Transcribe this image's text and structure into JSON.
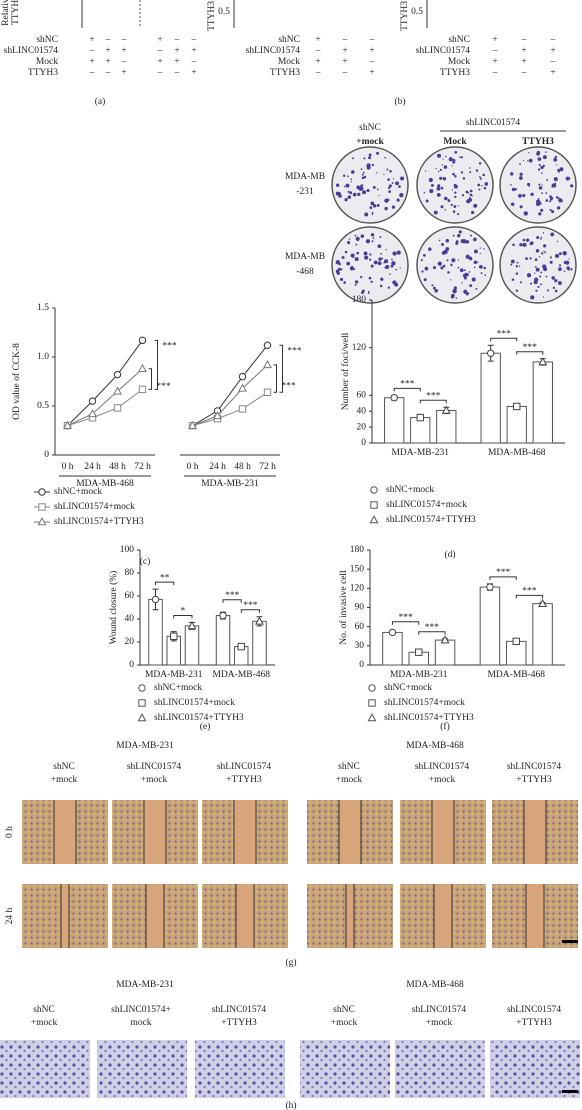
{
  "top": {
    "panel_a": {
      "ylabel": [
        "Relative",
        "TTYH3"
      ],
      "rows": [
        {
          "label": "shNC",
          "signs": [
            "+",
            "–",
            "–",
            "+",
            "–",
            "–"
          ]
        },
        {
          "label": "shLINC01574",
          "signs": [
            "–",
            "+",
            "+",
            "–",
            "+",
            "+"
          ]
        },
        {
          "label": "Mock",
          "signs": [
            "+",
            "+",
            "–",
            "+",
            "+",
            "–"
          ]
        },
        {
          "label": "TTYH3",
          "signs": [
            "–",
            "–",
            "+",
            "–",
            "–",
            "+"
          ]
        }
      ],
      "panel": "(a)"
    },
    "panel_b": {
      "ylabel": "TTYH3",
      "tick": "0.5",
      "rows": [
        {
          "label": "shNC",
          "signs": [
            "+",
            "–",
            "–",
            "+",
            "–",
            "–"
          ]
        },
        {
          "label": "shLINC01574",
          "signs": [
            "–",
            "+",
            "+",
            "–",
            "+",
            "+"
          ]
        },
        {
          "label": "Mock",
          "signs": [
            "+",
            "+",
            "–",
            "+",
            "+",
            "–"
          ]
        },
        {
          "label": "TTYH3",
          "signs": [
            "–",
            "–",
            "+",
            "–",
            "–",
            "+"
          ]
        }
      ],
      "panel": "(b)"
    }
  },
  "colony": {
    "columns": [
      "shNC",
      "+mock"
    ],
    "group": "shLINC01574",
    "subcolumns": [
      "Mock",
      "TTYH3"
    ],
    "rows": [
      [
        "MDA-MB",
        "-231"
      ],
      [
        "MDA-MB",
        "-468"
      ]
    ]
  },
  "chart_data": [
    {
      "type": "line",
      "panel": "(c)",
      "ylabel": "OD value of CCK-8",
      "categories": [
        "0 h",
        "24 h",
        "48 h",
        "72 h",
        null,
        "0 h",
        "24 h",
        "48 h",
        "72 h"
      ],
      "groups": [
        "MDA-MB-468",
        "MDA-MB-231"
      ],
      "series": [
        {
          "name": "shNC+mock",
          "color": "#333333",
          "marker": "circle",
          "values": [
            0.3,
            0.55,
            0.82,
            1.17,
            null,
            0.3,
            0.45,
            0.8,
            1.12
          ]
        },
        {
          "name": "shLINC01574+mock",
          "color": "#888888",
          "marker": "square",
          "values": [
            0.3,
            0.38,
            0.48,
            0.67,
            null,
            0.3,
            0.37,
            0.47,
            0.64
          ]
        },
        {
          "name": "shLINC01574+TTYH3",
          "color": "#777777",
          "marker": "triangle",
          "values": [
            0.3,
            0.42,
            0.65,
            0.88,
            null,
            0.3,
            0.4,
            0.68,
            0.92
          ]
        }
      ],
      "significance": [
        [
          "***",
          "***"
        ],
        [
          "***",
          "***"
        ]
      ],
      "ylim": [
        0,
        1.5
      ],
      "yticks": [
        0,
        0.5,
        {
          "value": 1,
          "label": "1.0"
        },
        1.5
      ]
    },
    {
      "type": "bar",
      "panel": "(d)",
      "ylabel": "Number of foci/well",
      "categories": [
        "MDA-MB-231",
        "MDA-MB-468"
      ],
      "series": [
        {
          "name": "shNC+mock",
          "color": "#555555",
          "marker": "circle",
          "values": [
            57,
            113
          ],
          "errors": [
            3,
            10
          ]
        },
        {
          "name": "shLINC01574+mock",
          "color": "#555555",
          "marker": "square",
          "values": [
            32,
            46
          ],
          "errors": [
            3,
            3
          ]
        },
        {
          "name": "shLINC01574+TTYH3",
          "color": "#555555",
          "marker": "triangle",
          "values": [
            41,
            102
          ],
          "errors": [
            4,
            4
          ]
        }
      ],
      "significance": [
        [
          "***",
          "***"
        ],
        [
          "***",
          "***"
        ]
      ],
      "ylim": [
        0,
        180
      ],
      "yticks": [
        0,
        20,
        40,
        60,
        120,
        180
      ]
    },
    {
      "type": "bar",
      "panel": "(e)",
      "ylabel": "Wound closure (%)",
      "categories": [
        "MDA-MB-231",
        "MDA-MB-468"
      ],
      "series": [
        {
          "name": "shNC+mock",
          "color": "#555555",
          "marker": "circle",
          "values": [
            57,
            43
          ],
          "errors": [
            9,
            3
          ]
        },
        {
          "name": "shLINC01574+mock",
          "color": "#555555",
          "marker": "square",
          "values": [
            25,
            16
          ],
          "errors": [
            4,
            2
          ]
        },
        {
          "name": "shLINC01574+TTYH3",
          "color": "#555555",
          "marker": "triangle",
          "values": [
            34,
            38
          ],
          "errors": [
            3,
            4
          ]
        }
      ],
      "significance": [
        [
          "**",
          "*"
        ],
        [
          "***",
          "***"
        ]
      ],
      "ylim": [
        0,
        100
      ],
      "yticks": [
        0,
        20,
        40,
        60,
        80,
        100
      ]
    },
    {
      "type": "bar",
      "panel": "(f)",
      "ylabel": "No. of invasive cell",
      "categories": [
        "MDA-MB-231",
        "MDA-MB-468"
      ],
      "series": [
        {
          "name": "shNC+mock",
          "color": "#555555",
          "marker": "circle",
          "values": [
            51,
            122
          ],
          "errors": [
            2,
            5
          ]
        },
        {
          "name": "shLINC01574+mock",
          "color": "#555555",
          "marker": "square",
          "values": [
            20,
            37
          ],
          "errors": [
            2,
            2
          ]
        },
        {
          "name": "shLINC01574+TTYH3",
          "color": "#555555",
          "marker": "triangle",
          "values": [
            39,
            96
          ],
          "errors": [
            2,
            2
          ]
        }
      ],
      "significance": [
        [
          "***",
          "***"
        ],
        [
          "***",
          "***"
        ]
      ],
      "ylim": [
        0,
        180
      ],
      "yticks": [
        0,
        30,
        60,
        90,
        120,
        150,
        180
      ]
    }
  ],
  "wound": {
    "groups": [
      {
        "title": "MDA-MB-231",
        "columns": [
          [
            "shNC",
            "+mock"
          ],
          [
            "shLINC01574",
            "+mock"
          ],
          [
            "shLINC01574",
            "+TTYH3"
          ]
        ]
      },
      {
        "title": "MDA-MB-468",
        "columns": [
          [
            "shNC",
            "+mock"
          ],
          [
            "shLINC01574",
            "+mock"
          ],
          [
            "shLINC01574",
            "+TTYH3"
          ]
        ]
      }
    ],
    "rows": [
      "0 h",
      "24 h"
    ],
    "panel": "(g)"
  },
  "invasion": {
    "groups": [
      {
        "title": "MDA-MB-231",
        "columns": [
          [
            "shNC",
            "+mock"
          ],
          [
            "shLINC01574+",
            "mock"
          ],
          [
            "shLINC01574",
            "+TTYH3"
          ]
        ]
      },
      {
        "title": "MDA-MB-468",
        "columns": [
          [
            "shNC",
            "+mock"
          ],
          [
            "shLINC01574",
            "+mock"
          ],
          [
            "shLINC01574",
            "+TTYH3"
          ]
        ]
      }
    ],
    "panel": "(h)"
  }
}
